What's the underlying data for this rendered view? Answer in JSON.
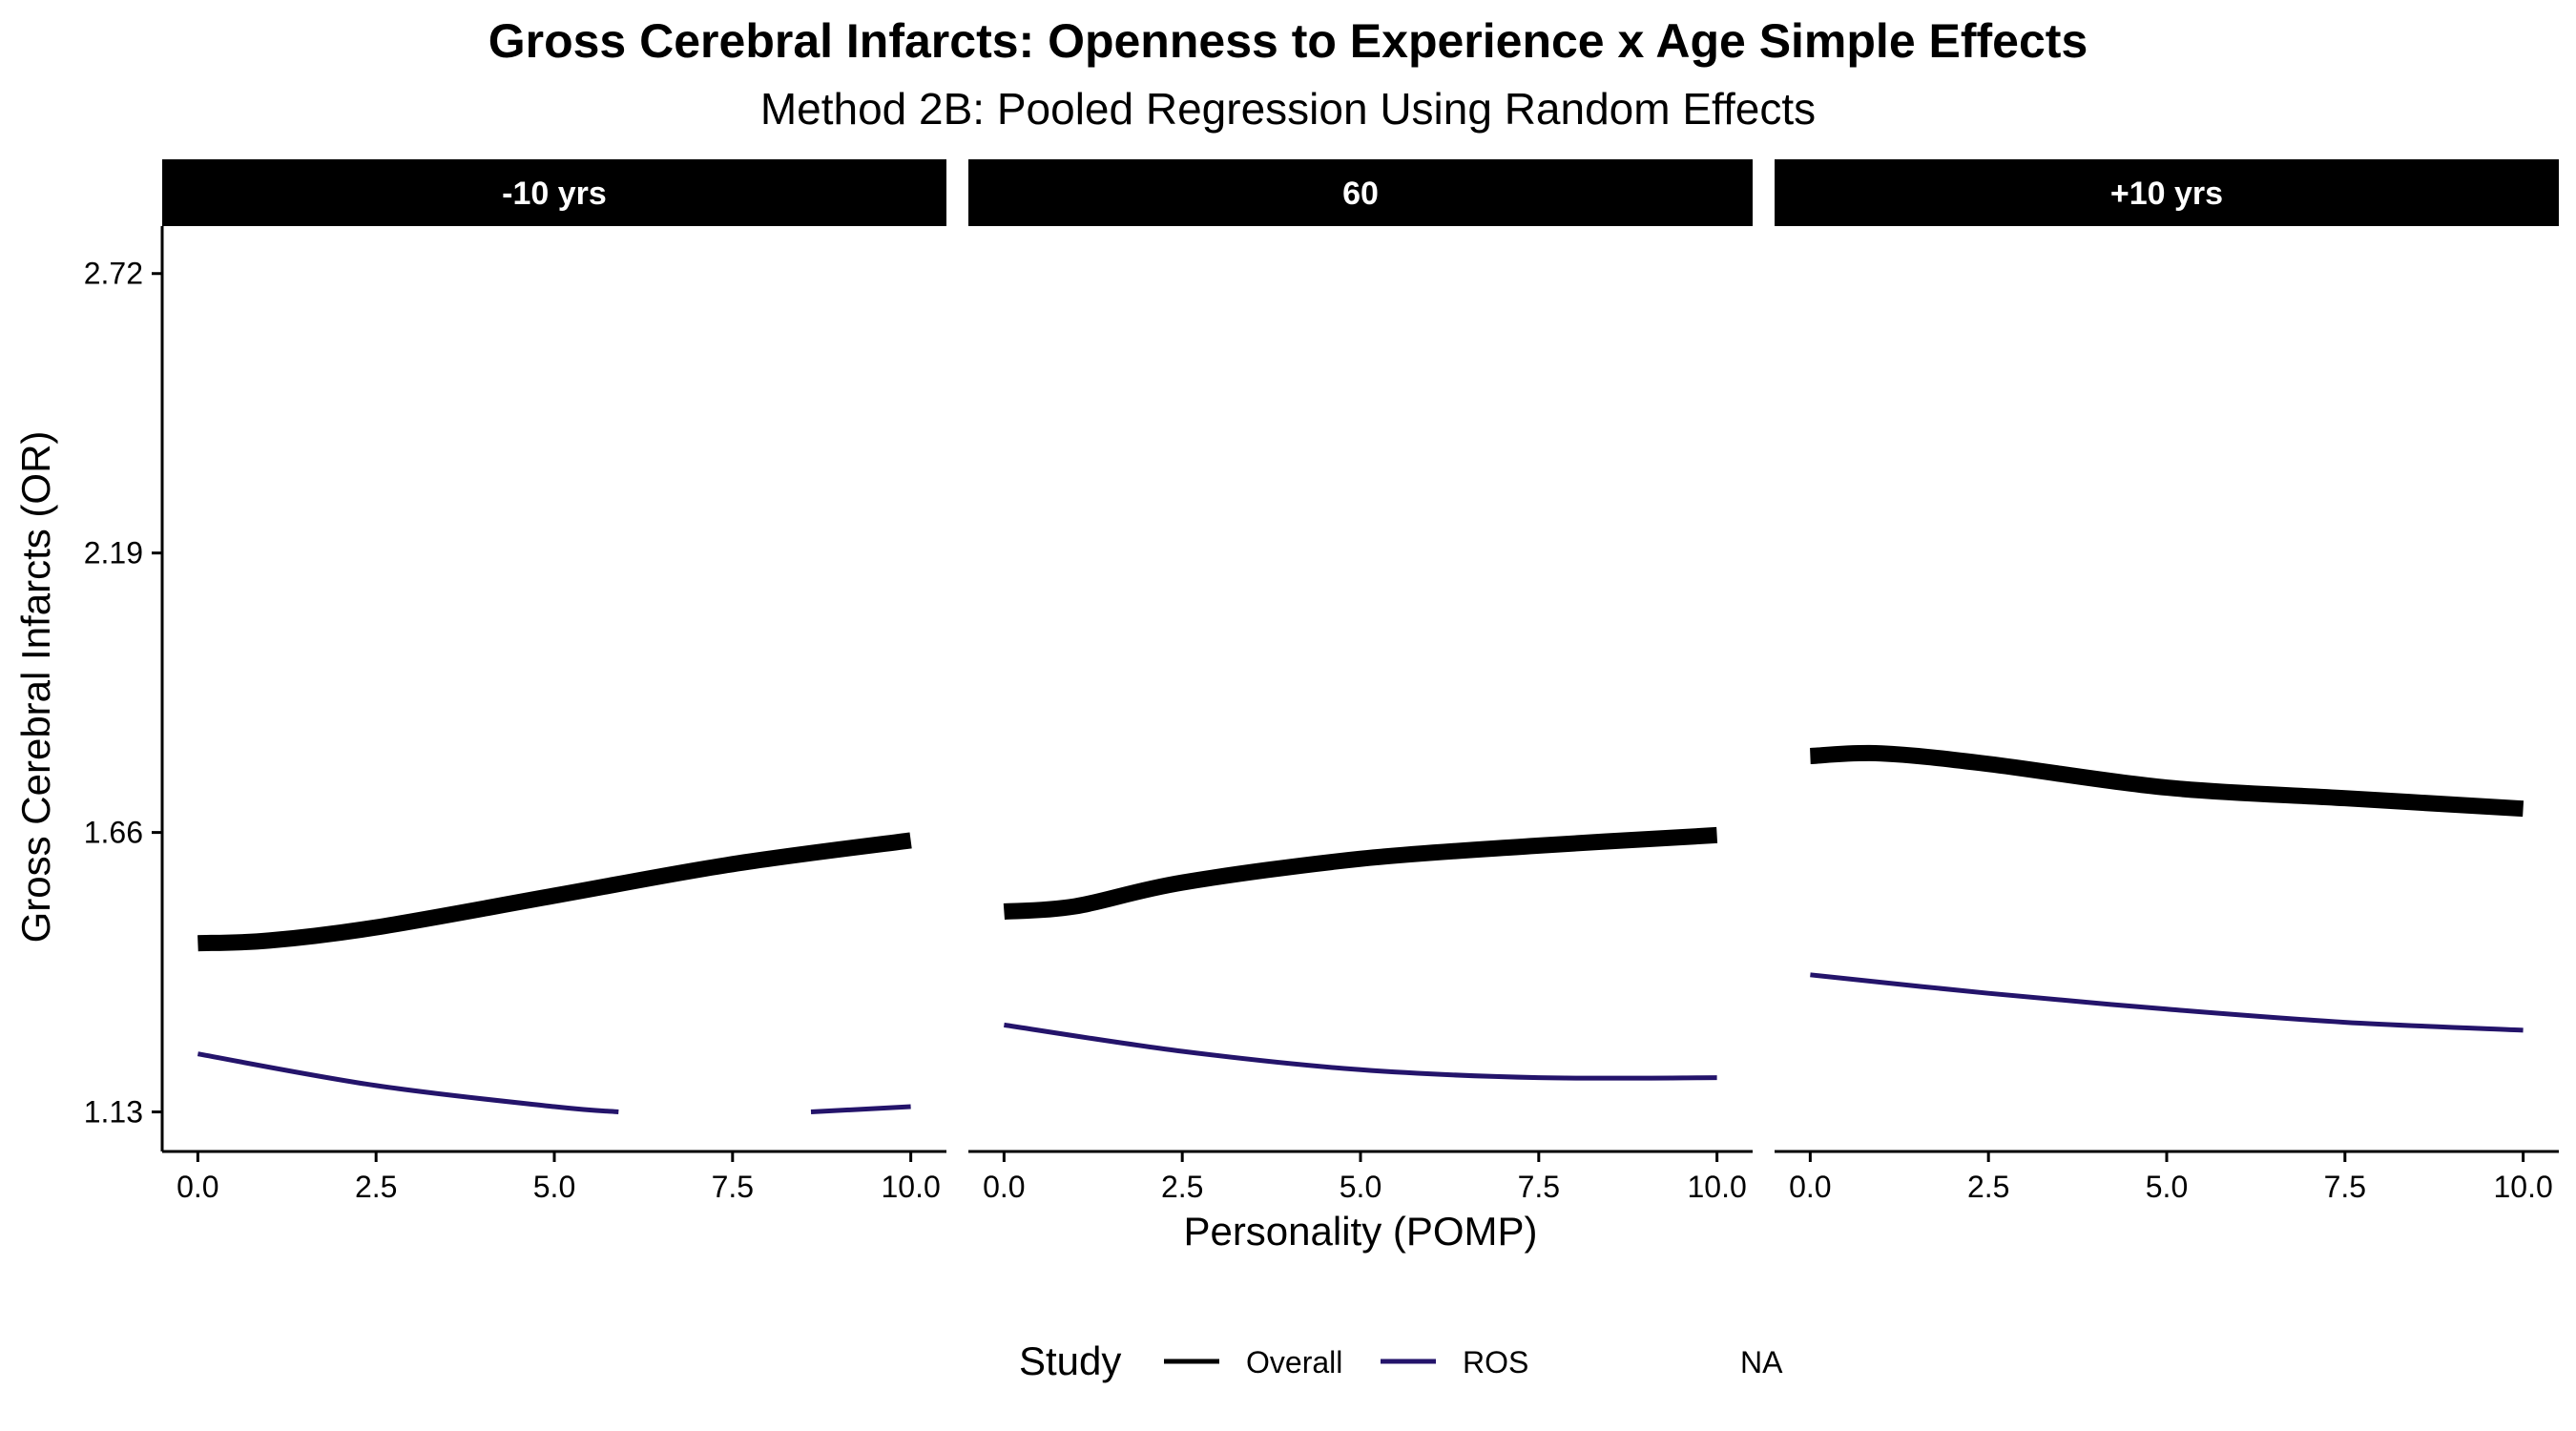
{
  "chart_data": {
    "type": "line",
    "title": "Gross Cerebral Infarcts: Openness to Experience x Age Simple Effects",
    "subtitle": "Method 2B: Pooled Regression Using Random Effects",
    "xlabel": "Personality (POMP)",
    "ylabel": "Gross Cerebral Infarcts (OR)",
    "xlim": [
      -0.5,
      10.5
    ],
    "ylim": [
      1.055,
      2.81
    ],
    "x_ticks": [
      0,
      2.5,
      5,
      7.5,
      10
    ],
    "x_tick_labels": [
      "0.0",
      "2.5",
      "5.0",
      "7.5",
      "10.0"
    ],
    "y_ticks": [
      1.13,
      1.66,
      2.19,
      2.72
    ],
    "y_tick_labels": [
      "1.13",
      "1.66",
      "2.19",
      "2.72"
    ],
    "grid": false,
    "legend": {
      "title": "Study",
      "placement": "bottom",
      "entries": [
        {
          "label": "Overall",
          "color": "#000000",
          "symbol": "line"
        },
        {
          "label": "ROS",
          "color": "#24146b",
          "symbol": "line"
        },
        {
          "label": "NA",
          "color": "",
          "symbol": "none"
        }
      ]
    },
    "panels": [
      {
        "label": "-10 yrs",
        "series": [
          {
            "name": "Overall",
            "color": "#000000",
            "width": "thick",
            "segments": [
              [
                [
                  0,
                  1.45
                ],
                [
                  1,
                  1.455
                ],
                [
                  2.5,
                  1.48
                ],
                [
                  5,
                  1.54
                ],
                [
                  7.5,
                  1.6
                ],
                [
                  10,
                  1.645
                ]
              ]
            ]
          },
          {
            "name": "ROS",
            "color": "#24146b",
            "width": "thin",
            "segments": [
              [
                [
                  0,
                  1.24
                ],
                [
                  2.5,
                  1.18
                ],
                [
                  5,
                  1.14
                ],
                [
                  5.9,
                  1.13
                ]
              ],
              [
                [
                  8.6,
                  1.13
                ],
                [
                  10,
                  1.14
                ]
              ]
            ]
          }
        ]
      },
      {
        "label": "60",
        "series": [
          {
            "name": "Overall",
            "color": "#000000",
            "width": "thick",
            "segments": [
              [
                [
                  0,
                  1.51
                ],
                [
                  1,
                  1.52
                ],
                [
                  2.5,
                  1.565
                ],
                [
                  5,
                  1.61
                ],
                [
                  7.5,
                  1.635
                ],
                [
                  10,
                  1.655
                ]
              ]
            ]
          },
          {
            "name": "ROS",
            "color": "#24146b",
            "width": "thin",
            "segments": [
              [
                [
                  0,
                  1.295
                ],
                [
                  2.5,
                  1.245
                ],
                [
                  5,
                  1.21
                ],
                [
                  7.5,
                  1.195
                ],
                [
                  10,
                  1.195
                ]
              ]
            ]
          }
        ]
      },
      {
        "label": "+10 yrs",
        "series": [
          {
            "name": "Overall",
            "color": "#000000",
            "width": "thick",
            "segments": [
              [
                [
                  0,
                  1.805
                ],
                [
                  1,
                  1.81
                ],
                [
                  2.5,
                  1.79
                ],
                [
                  5,
                  1.745
                ],
                [
                  7.5,
                  1.725
                ],
                [
                  10,
                  1.705
                ]
              ]
            ]
          },
          {
            "name": "ROS",
            "color": "#24146b",
            "width": "thin",
            "segments": [
              [
                [
                  0,
                  1.39
                ],
                [
                  2.5,
                  1.355
                ],
                [
                  5,
                  1.325
                ],
                [
                  7.5,
                  1.3
                ],
                [
                  10,
                  1.285
                ]
              ]
            ]
          }
        ]
      }
    ]
  }
}
